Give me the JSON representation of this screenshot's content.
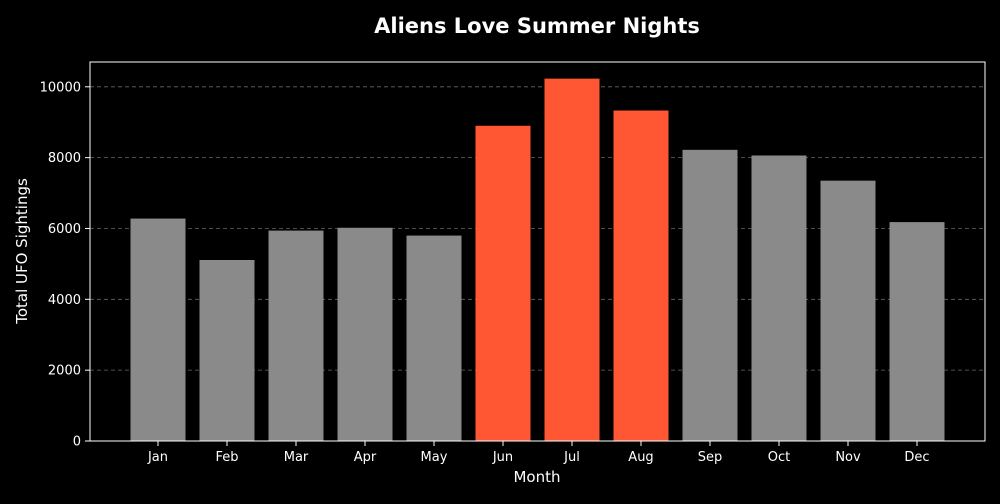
{
  "chart_data": {
    "type": "bar",
    "title": "Aliens Love Summer Nights",
    "xlabel": "Month",
    "ylabel": "Total UFO Sightings",
    "categories": [
      "Jan",
      "Feb",
      "Mar",
      "Apr",
      "May",
      "Jun",
      "Jul",
      "Aug",
      "Sep",
      "Oct",
      "Nov",
      "Dec"
    ],
    "values": [
      6280,
      5110,
      5940,
      6020,
      5800,
      8900,
      10230,
      9330,
      8220,
      8060,
      7350,
      6180
    ],
    "highlighted": [
      "Jun",
      "Jul",
      "Aug"
    ],
    "ylim": [
      0,
      10700
    ],
    "yticks": [
      0,
      2000,
      4000,
      6000,
      8000,
      10000
    ],
    "grid": true,
    "colors": {
      "background": "#000000",
      "bar": "#8a8a8a",
      "highlight": "#ff5733",
      "text": "#ffffff",
      "grid": "#888888"
    }
  }
}
